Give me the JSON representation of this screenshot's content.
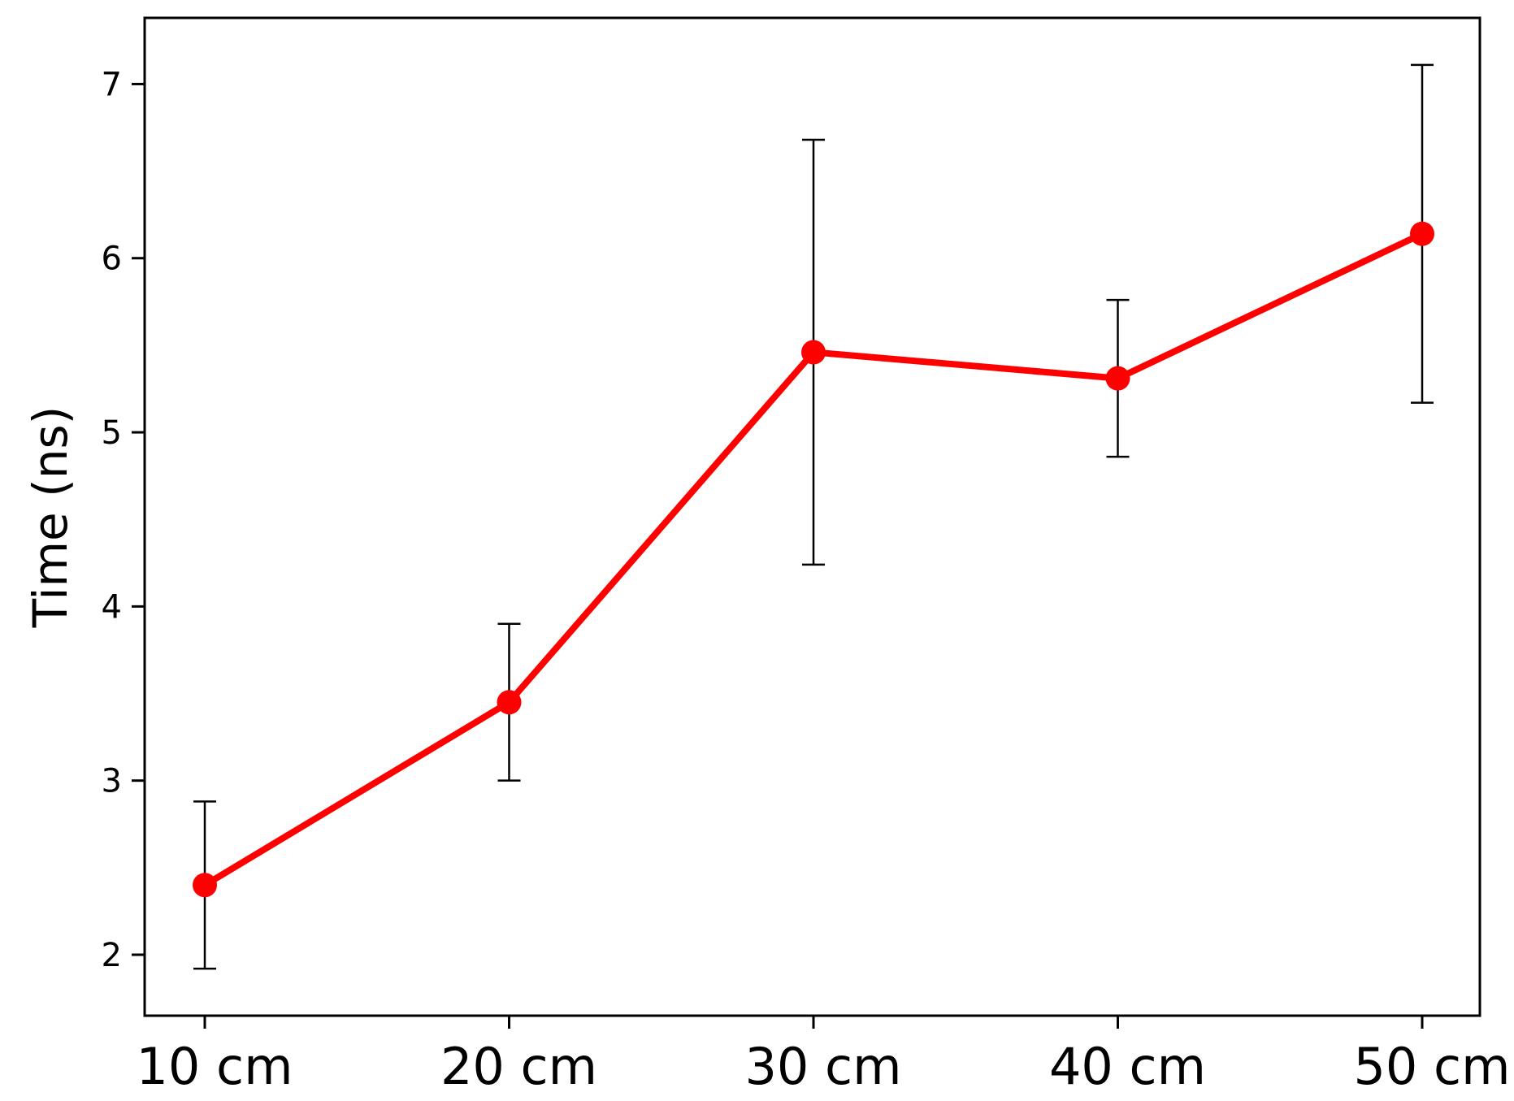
{
  "chart_data": {
    "type": "line",
    "title": "",
    "xlabel": "",
    "ylabel": "Time (ns)",
    "categories": [
      "10 cm",
      "20 cm",
      "30 cm",
      "40 cm",
      "50 cm"
    ],
    "y_ticks": [
      2,
      3,
      4,
      5,
      6,
      7
    ],
    "ylim": [
      1.65,
      7.38
    ],
    "grid": false,
    "legend": "none",
    "series": [
      {
        "values": [
          2.4,
          3.45,
          5.46,
          5.31,
          6.14
        ],
        "error": [
          0.48,
          0.45,
          1.22,
          0.45,
          0.97
        ],
        "color": "#ff0000",
        "error_color": "#000000",
        "marker": "circle"
      }
    ]
  }
}
